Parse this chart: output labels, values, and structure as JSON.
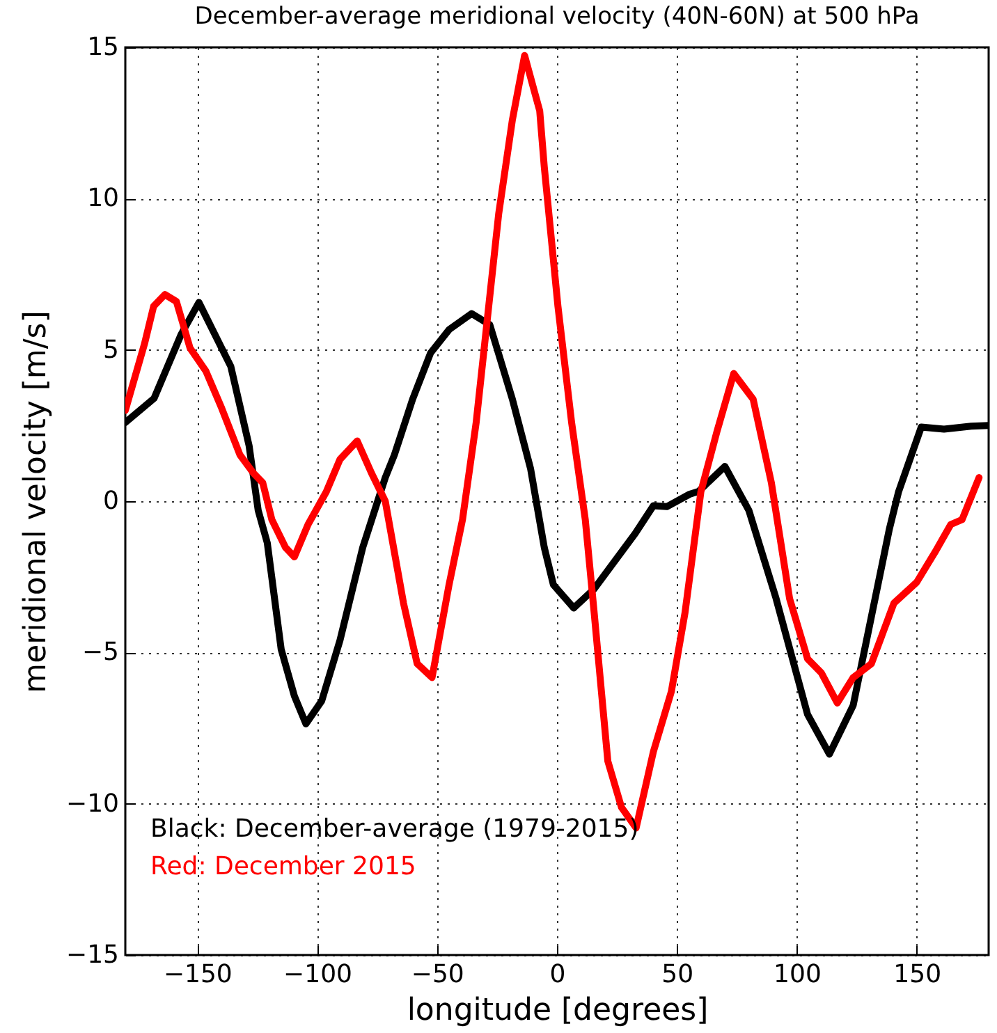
{
  "chart_data": {
    "type": "line",
    "title": "December-average meridional velocity (40N-60N) at 500 hPa",
    "xlabel": "longitude [degrees]",
    "ylabel": "meridional velocity [m/s]",
    "xlim": [
      -180,
      180
    ],
    "xticks": [
      -150,
      -100,
      -50,
      0,
      50,
      100,
      150
    ],
    "ylim": [
      -15,
      15
    ],
    "yticks": [
      -15,
      -10,
      -5,
      0,
      5,
      10,
      15
    ],
    "grid": true,
    "legend": false,
    "line_style": "solid",
    "marker": "none",
    "annotations": [
      "Black: December-average (1979-2015)",
      "Red: December 2015"
    ],
    "series": [
      {
        "color": "#000000",
        "x": [
          -180,
          -168,
          -156.8,
          -149.3,
          -136,
          -128.4,
          -124.6,
          -120.8,
          -115,
          -109.5,
          -104.7,
          -98.1,
          -90.5,
          -81,
          -71.6,
          -67.8,
          -60.2,
          -52.7,
          -45,
          -35.6,
          -28,
          -18.6,
          -11,
          -8,
          -5.3,
          -1.5,
          7,
          15.5,
          32.6,
          40.2,
          45.8,
          55.3,
          59,
          70,
          80,
          91.3,
          104.5,
          113.6,
          123.5,
          138.6,
          142.4,
          151.9,
          161.4,
          172.7,
          180
        ],
        "values": [
          2.6,
          3.4,
          5.5,
          6.57,
          4.45,
          1.84,
          -0.3,
          -1.38,
          -4.9,
          -6.44,
          -7.36,
          -6.6,
          -4.6,
          -1.53,
          0.78,
          1.53,
          3.37,
          4.9,
          5.67,
          6.2,
          5.83,
          3.37,
          1.07,
          -0.3,
          -1.53,
          -2.76,
          -3.53,
          -2.9,
          -1.07,
          -0.15,
          -0.18,
          0.23,
          0.32,
          1.15,
          -0.3,
          -3.2,
          -7.05,
          -8.36,
          -6.75,
          -0.92,
          0.3,
          2.45,
          2.38,
          2.48,
          2.5
        ]
      },
      {
        "color": "#ff0000",
        "x": [
          -180,
          -172,
          -168.2,
          -163.5,
          -158.7,
          -153,
          -146.4,
          -139.8,
          -132.2,
          -126.5,
          -122.7,
          -118.9,
          -113.2,
          -109.5,
          -103.8,
          -96.2,
          -90.5,
          -83.3,
          -77.3,
          -71.6,
          -64,
          -58.3,
          -52.1,
          -45,
          -39.4,
          -33.7,
          -24.3,
          -18.6,
          -13.5,
          -7.2,
          -5.3,
          0.4,
          6.1,
          11.8,
          15.5,
          21.2,
          26.9,
          33,
          40.2,
          47.7,
          53.4,
          60,
          66.7,
          73.7,
          81.8,
          89.4,
          97,
          104.5,
          110.2,
          116.9,
          123.5,
          131.1,
          140.5,
          150,
          157.6,
          164.2,
          168.9,
          176
        ],
        "values": [
          3.0,
          5.2,
          6.44,
          6.83,
          6.6,
          5.06,
          4.3,
          3.07,
          1.53,
          0.92,
          0.61,
          -0.61,
          -1.53,
          -1.84,
          -0.77,
          0.31,
          1.38,
          1.99,
          0.92,
          0,
          -3.37,
          -5.37,
          -5.83,
          -2.76,
          -0.61,
          2.6,
          9.5,
          12.6,
          14.73,
          12.9,
          11.05,
          6.44,
          2.6,
          -0.61,
          -3.68,
          -8.59,
          -10.12,
          -10.8,
          -8.28,
          -6.29,
          -3.68,
          0.31,
          2.3,
          4.22,
          3.37,
          0.61,
          -3.22,
          -5.21,
          -5.67,
          -6.67,
          -5.83,
          -5.37,
          -3.37,
          -2.68,
          -1.69,
          -0.77,
          -0.61,
          0.78
        ]
      }
    ]
  }
}
